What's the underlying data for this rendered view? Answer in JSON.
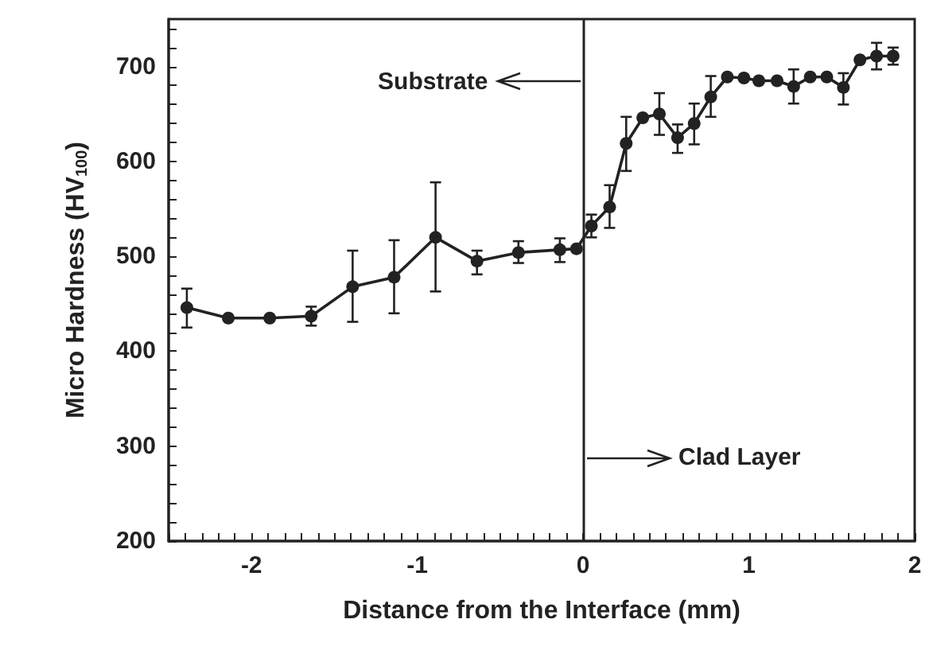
{
  "chart_data": {
    "type": "line",
    "xlabel": "Distance from the Interface (mm)",
    "ylabel": "Micro Hardness (HV$_{100}$)",
    "x": [
      -2.39,
      -2.14,
      -1.89,
      -1.64,
      -1.39,
      -1.14,
      -0.89,
      -0.64,
      -0.39,
      -0.14,
      -0.04,
      0.05,
      0.16,
      0.26,
      0.36,
      0.46,
      0.57,
      0.67,
      0.77,
      0.87,
      0.97,
      1.06,
      1.17,
      1.27,
      1.37,
      1.47,
      1.57,
      1.67,
      1.77,
      1.87
    ],
    "series": [
      {
        "color": "#222222",
        "values": [
          446,
          435,
          435,
          437,
          468,
          478,
          520,
          495,
          504,
          507,
          508,
          532,
          552,
          619,
          646,
          650,
          625,
          640,
          668,
          689,
          688,
          685,
          685,
          679,
          689,
          689,
          678,
          707,
          711,
          711
        ],
        "errors": [
          [
            425,
            466
          ],
          null,
          null,
          [
            427,
            447
          ],
          [
            431,
            506
          ],
          [
            440,
            517
          ],
          [
            463,
            578
          ],
          [
            481,
            506
          ],
          [
            493,
            516
          ],
          [
            494,
            519
          ],
          null,
          12,
          [
            530,
            575
          ],
          [
            590,
            647
          ],
          null,
          [
            628,
            672
          ],
          [
            609,
            639
          ],
          [
            618,
            661
          ],
          [
            647,
            690
          ],
          null,
          null,
          null,
          null,
          [
            661,
            697
          ],
          null,
          null,
          [
            660,
            693
          ],
          null,
          14,
          9
        ]
      }
    ],
    "xlim": [
      -2.5,
      2
    ],
    "xticks": [
      -2,
      -1,
      0,
      1,
      2
    ],
    "ylim": [
      200,
      750
    ],
    "yticks": [
      200,
      300,
      400,
      500,
      600,
      700
    ],
    "ref_lines": [
      {
        "axis": "x",
        "value": 0,
        "color": "#222222"
      }
    ],
    "annotations": [
      "Substrate",
      "Clad Layer"
    ],
    "marker": "circle",
    "line_style": "solid"
  }
}
